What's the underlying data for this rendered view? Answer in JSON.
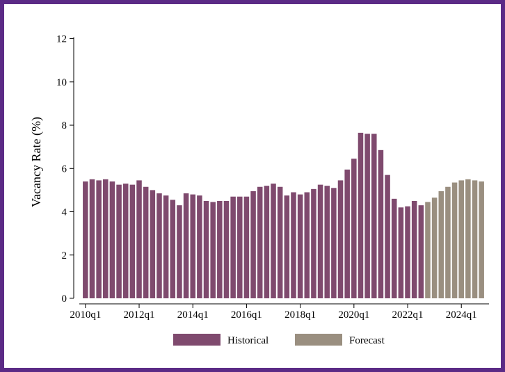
{
  "chart_data": {
    "type": "bar",
    "ylabel": "Vacancy Rate (%)",
    "xlabel": "",
    "ylim": [
      0,
      12.5
    ],
    "yticks": [
      0,
      2,
      4,
      6,
      8,
      10,
      12
    ],
    "xtick_labels": [
      "2010q1",
      "2012q1",
      "2014q1",
      "2016q1",
      "2018q1",
      "2020q1",
      "2022q1",
      "2024q1"
    ],
    "xtick_positions": [
      0,
      8,
      16,
      24,
      32,
      40,
      48,
      56
    ],
    "categories": [
      "2010q1",
      "2010q2",
      "2010q3",
      "2010q4",
      "2011q1",
      "2011q2",
      "2011q3",
      "2011q4",
      "2012q1",
      "2012q2",
      "2012q3",
      "2012q4",
      "2013q1",
      "2013q2",
      "2013q3",
      "2013q4",
      "2014q1",
      "2014q2",
      "2014q3",
      "2014q4",
      "2015q1",
      "2015q2",
      "2015q3",
      "2015q4",
      "2016q1",
      "2016q2",
      "2016q3",
      "2016q4",
      "2017q1",
      "2017q2",
      "2017q3",
      "2017q4",
      "2018q1",
      "2018q2",
      "2018q3",
      "2018q4",
      "2019q1",
      "2019q2",
      "2019q3",
      "2019q4",
      "2020q1",
      "2020q2",
      "2020q3",
      "2020q4",
      "2021q1",
      "2021q2",
      "2021q3",
      "2021q4",
      "2022q1",
      "2022q2",
      "2022q3",
      "2022q4",
      "2023q1",
      "2023q2",
      "2023q3",
      "2023q4",
      "2024q1",
      "2024q2",
      "2024q3",
      "2024q4"
    ],
    "series": [
      {
        "name": "Historical",
        "color": "#7f4a6e",
        "values": [
          5.4,
          5.5,
          5.45,
          5.5,
          5.4,
          5.25,
          5.3,
          5.25,
          5.45,
          5.15,
          5.0,
          4.85,
          4.75,
          4.55,
          4.3,
          4.85,
          4.8,
          4.75,
          4.5,
          4.45,
          4.5,
          4.5,
          4.7,
          4.7,
          4.7,
          4.95,
          5.15,
          5.2,
          5.3,
          5.15,
          4.75,
          4.9,
          4.8,
          4.9,
          5.05,
          5.25,
          5.2,
          5.1,
          5.45,
          5.95,
          6.45,
          7.65,
          7.6,
          7.6,
          6.85,
          5.7,
          4.6,
          4.2,
          4.25,
          4.5,
          4.3,
          null,
          null,
          null,
          null,
          null,
          null,
          null,
          null,
          null
        ]
      },
      {
        "name": "Forecast",
        "color": "#9a8f80",
        "values": [
          null,
          null,
          null,
          null,
          null,
          null,
          null,
          null,
          null,
          null,
          null,
          null,
          null,
          null,
          null,
          null,
          null,
          null,
          null,
          null,
          null,
          null,
          null,
          null,
          null,
          null,
          null,
          null,
          null,
          null,
          null,
          null,
          null,
          null,
          null,
          null,
          null,
          null,
          null,
          null,
          null,
          null,
          null,
          null,
          null,
          null,
          null,
          null,
          null,
          null,
          null,
          4.45,
          4.65,
          4.95,
          5.15,
          5.35,
          5.45,
          5.5,
          5.45,
          5.4
        ]
      }
    ],
    "legend": {
      "placement": "bottom-center"
    }
  }
}
